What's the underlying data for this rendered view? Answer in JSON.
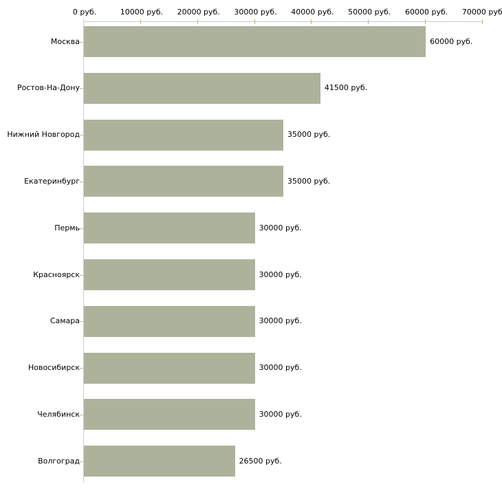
{
  "chart_data": {
    "type": "bar",
    "orientation": "horizontal",
    "title": "",
    "xlabel": "",
    "ylabel": "",
    "unit": "руб.",
    "categories": [
      "Москва",
      "Ростов-На-Дону",
      "Нижний Новгород",
      "Екатеринбург",
      "Пермь",
      "Красноярск",
      "Самара",
      "Новосибирск",
      "Челябинск",
      "Волгоград"
    ],
    "values": [
      60000,
      41500,
      35000,
      35000,
      30000,
      30000,
      30000,
      30000,
      30000,
      26500
    ],
    "value_labels": [
      "60000 руб.",
      "41500 руб.",
      "35000 руб.",
      "35000 руб.",
      "30000 руб.",
      "30000 руб.",
      "30000 руб.",
      "30000 руб.",
      "30000 руб.",
      "26500 руб."
    ],
    "x_ticks": [
      0,
      10000,
      20000,
      30000,
      40000,
      50000,
      60000,
      70000
    ],
    "x_tick_labels": [
      "0 руб.",
      "10000 руб.",
      "20000 руб.",
      "30000 руб.",
      "40000 руб.",
      "50000 руб.",
      "60000 руб.",
      "70000 руб."
    ],
    "xlim": [
      0,
      70000
    ],
    "axis_position": "top",
    "grid": false,
    "legend": false,
    "colors": {
      "bar": "#adb39b",
      "axis_line": "#cccccc",
      "tick": "#b9b983",
      "text": "#000000",
      "background": "#ffffff"
    }
  }
}
